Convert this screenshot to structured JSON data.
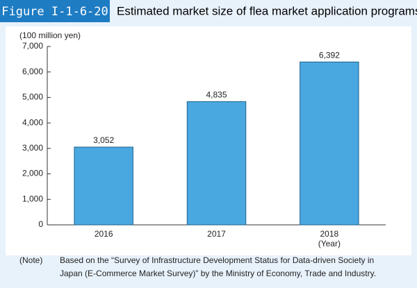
{
  "chart_data": {
    "type": "bar",
    "figure_label": "Figure I-1-6-20",
    "title": "Estimated market size of flea market application programs*",
    "y_label": "(100 million yen)",
    "x_label": "(Year)",
    "categories": [
      "2016",
      "2017",
      "2018"
    ],
    "values": [
      3052,
      4835,
      6392
    ],
    "value_labels": [
      "3,052",
      "4,835",
      "6,392"
    ],
    "color": "#4aa8e0",
    "ylim": [
      0,
      7000
    ],
    "yticks": [
      0,
      {
        "value": 1000,
        "label": "1,000"
      },
      {
        "value": 2000,
        "label": "2,000"
      },
      {
        "value": 3000,
        "label": "3,000"
      },
      {
        "value": 4000,
        "label": "4,000"
      },
      {
        "value": 5000,
        "label": "5,000"
      },
      {
        "value": 6000,
        "label": "6,000"
      },
      {
        "value": 7000,
        "label": "7,000"
      }
    ],
    "grid": false,
    "note_label": "(Note)",
    "note": [
      "Based on the “Survey of Infrastructure Development Status for Data-driven Society in",
      "Japan (E-Commerce Market Survey)” by the Ministry of Economy, Trade and Industry."
    ]
  }
}
